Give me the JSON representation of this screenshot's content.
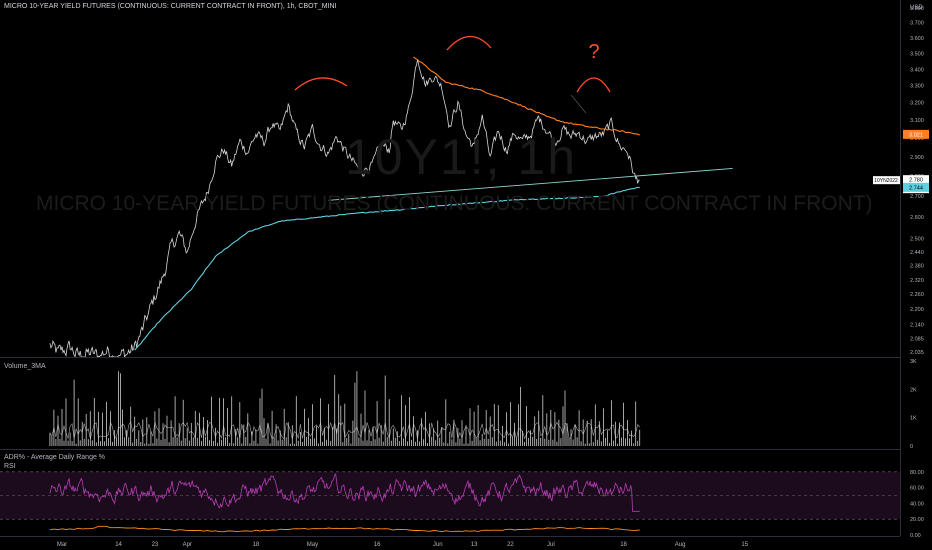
{
  "header": {
    "title": "MICRO 10-YEAR YIELD FUTURES (CONTINUOUS: CURRENT CONTRACT IN FRONT), 1h, CBOT_MINI"
  },
  "watermark": {
    "symbol": "10Y1!, 1h",
    "name": "MICRO 10-YEAR YIELD FUTURES (CONTINUOUS: CURRENT CONTRACT IN FRONT)"
  },
  "panes": {
    "volume_label": "Volume_3MA",
    "adr_label": "ADR% - Average Daily Range %",
    "rsi_label": "RSI"
  },
  "annotation": {
    "question_mark": "?"
  },
  "colors": {
    "background": "#000000",
    "price": "#d8d8d8",
    "sma": "#5dd0e0",
    "resistance": "#ff7f1e",
    "trendline": "#8fd6d0",
    "arcs": "#ff4d2e",
    "rsi": "#b33fb3",
    "adr": "#ff8c1a",
    "volume": "#cfcfcf"
  },
  "chart_data": {
    "type": "line",
    "title": "MICRO 10-YEAR YIELD FUTURES (CONTINUOUS: CURRENT CONTRACT IN FRONT), 1h, CBOT_MINI",
    "y_unit": "USD",
    "y_scale": "log",
    "ylim": [
      2.03,
      3.85
    ],
    "y_ticks": [
      3.8,
      3.7,
      3.6,
      3.5,
      3.4,
      3.3,
      3.2,
      3.1,
      3.0,
      2.9,
      2.8,
      2.7,
      2.6,
      2.5,
      2.44,
      2.38,
      2.32,
      2.26,
      2.2,
      2.14,
      2.085,
      2.035
    ],
    "x_ticks": [
      "Mar",
      "14",
      "23",
      "Apr",
      "18",
      "May",
      "16",
      "Jun",
      "13",
      "22",
      "Jul",
      "18",
      "Aug",
      "15"
    ],
    "price_series": {
      "name": "10Y1!",
      "anchors_day": [
        -1,
        1,
        4,
        6,
        9,
        11,
        13,
        16,
        18,
        20,
        22,
        25,
        27,
        29,
        31,
        33,
        35,
        38,
        40,
        42,
        44,
        46,
        48,
        50,
        52,
        54,
        56,
        58,
        60,
        62,
        64,
        66,
        68,
        70,
        72,
        74,
        76,
        77,
        79,
        81,
        83,
        84,
        86,
        88,
        90,
        92,
        94,
        96,
        98,
        100,
        102,
        104,
        106,
        108,
        110,
        112,
        114,
        116,
        118,
        120,
        122,
        124,
        126,
        128,
        130,
        132,
        134,
        136,
        138,
        140,
        142,
        144,
        145
      ],
      "anchors_value": [
        2.06,
        2.03,
        2.05,
        2.02,
        2.03,
        2.02,
        2.04,
        2.02,
        2.03,
        2.05,
        2.12,
        2.25,
        2.33,
        2.46,
        2.52,
        2.44,
        2.58,
        2.72,
        2.88,
        2.94,
        2.85,
        2.98,
        2.93,
        3.02,
        2.98,
        3.08,
        3.03,
        3.18,
        3.03,
        2.95,
        3.05,
        2.96,
        2.92,
        3.01,
        2.93,
        2.87,
        2.82,
        2.84,
        2.86,
        2.96,
        2.94,
        3.1,
        3.04,
        3.18,
        3.48,
        3.31,
        3.36,
        3.3,
        3.07,
        3.2,
        3.02,
        2.95,
        3.12,
        2.89,
        3.04,
        2.94,
        3.03,
        2.98,
        3.02,
        3.11,
        3.05,
        2.98,
        3.05,
        3.01,
        3.03,
        2.98,
        3.01,
        3.02,
        3.08,
        2.96,
        2.93,
        2.78,
        2.78
      ]
    },
    "sma_series": {
      "anchors_day": [
        20,
        26,
        34,
        40,
        48,
        56,
        66,
        76,
        86,
        96,
        106,
        116,
        126,
        136,
        142,
        145
      ],
      "anchors_value": [
        2.04,
        2.15,
        2.28,
        2.42,
        2.53,
        2.58,
        2.6,
        2.62,
        2.635,
        2.655,
        2.67,
        2.685,
        2.69,
        2.7,
        2.733,
        2.744
      ]
    },
    "resistance_line": {
      "anchors_day": [
        89,
        97,
        106,
        114,
        122,
        126,
        133,
        140,
        145
      ],
      "anchors_value": [
        3.48,
        3.32,
        3.27,
        3.2,
        3.12,
        3.09,
        3.06,
        3.04,
        3.02
      ]
    },
    "trend_line": {
      "start_day": 68,
      "start_value": 2.68,
      "end_day": 168,
      "end_value": 2.84
    },
    "current_price_label": "2.780",
    "current_price_countdown": "44:31",
    "current_contract_tag": "10YN2022",
    "sma_price_label": "2.744",
    "resistance_price_label": "3.021",
    "volume": {
      "ylim": [
        0,
        3000
      ],
      "y_ticks": [
        "3K",
        "2K",
        "1K",
        "0"
      ]
    },
    "rsi_adr": {
      "ylim": [
        0,
        100
      ],
      "y_ticks": [
        "80.00",
        "60.00",
        "40.00",
        "20.00",
        "0.00"
      ],
      "band": [
        20,
        80
      ],
      "midline": 50
    }
  }
}
